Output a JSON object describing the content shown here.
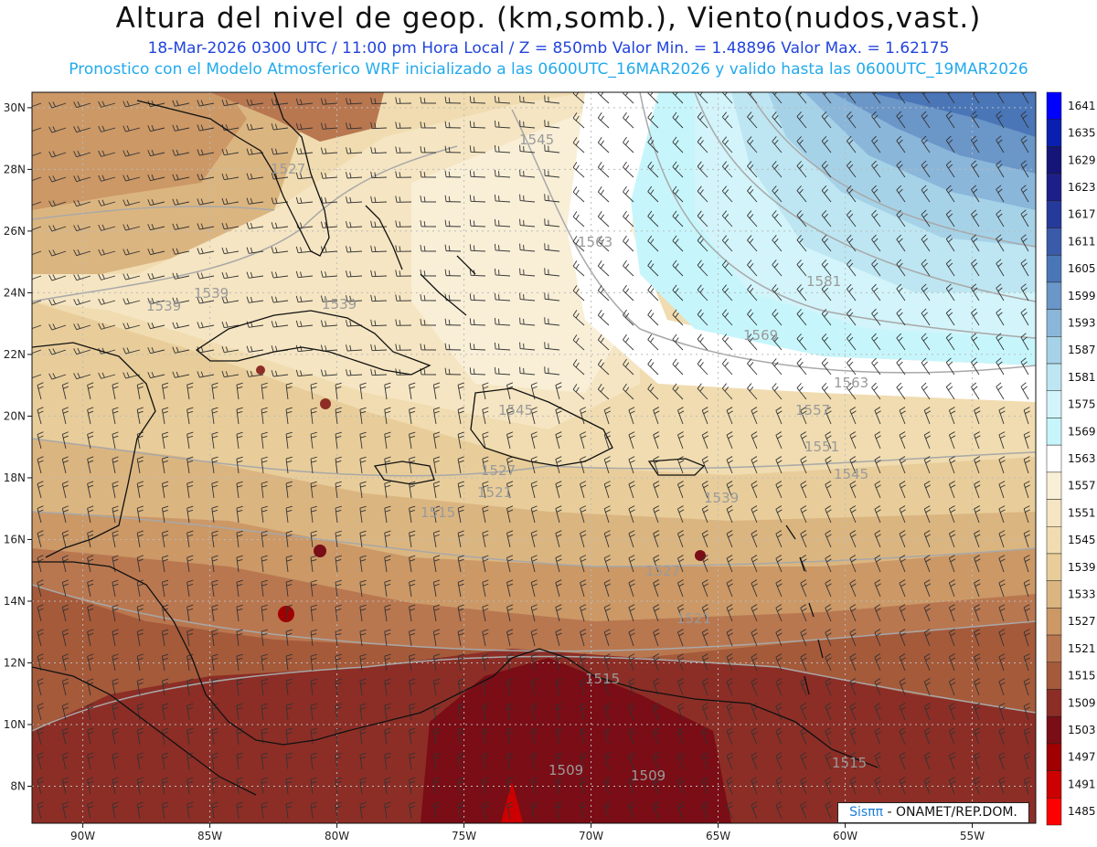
{
  "header": {
    "title": "Altura del nivel de geop. (km,somb.), Viento(nudos,vast.)",
    "subtitle_1": "18-Mar-2026  0300 UTC / 11:00 pm Hora Local / Z = 850mb    Valor Min. = 1.48896   Valor Max. = 1.62175",
    "subtitle_2": "Pronostico con el Modelo Atmosferico WRF inicializado a las 0600UTC_16MAR2026 y valido hasta las  0600UTC_19MAR2026"
  },
  "map": {
    "lon_ticks": [
      "90W",
      "85W",
      "80W",
      "75W",
      "70W",
      "65W",
      "60W",
      "55W"
    ],
    "lat_ticks": [
      "30N",
      "28N",
      "26N",
      "24N",
      "22N",
      "20N",
      "18N",
      "16N",
      "14N",
      "12N",
      "10N",
      "8N"
    ],
    "contour_labels": [
      "1545",
      "1527",
      "1563",
      "1539",
      "1539",
      "1539",
      "1581",
      "1569",
      "1563",
      "1545",
      "1557",
      "1551",
      "1545",
      "1527",
      "1521",
      "1515",
      "1539",
      "1527",
      "1521",
      "1515",
      "1509",
      "1509",
      "1515"
    ],
    "extent": {
      "lon": [
        -92,
        -52.5
      ],
      "lat": [
        6.8,
        30.5
      ]
    }
  },
  "colorbar": {
    "levels": [
      "1641",
      "1635",
      "1629",
      "1623",
      "1617",
      "1611",
      "1605",
      "1599",
      "1593",
      "1587",
      "1581",
      "1575",
      "1569",
      "1563",
      "1557",
      "1551",
      "1545",
      "1539",
      "1533",
      "1527",
      "1521",
      "1515",
      "1509",
      "1503",
      "1497",
      "1491",
      "1485"
    ],
    "colors": [
      "#0000ff",
      "#0a1fb0",
      "#151478",
      "#1e1e8a",
      "#263a9c",
      "#3a5aaa",
      "#4a76b8",
      "#6a96c8",
      "#8ab6da",
      "#a6d2e8",
      "#bde6f2",
      "#d2f4fa",
      "#c6f6fc",
      "#ffffff",
      "#f9efd7",
      "#f5e5c2",
      "#f0dcb0",
      "#e8cd9a",
      "#dbb580",
      "#cb9866",
      "#b97750",
      "#a55a3a",
      "#8c2e26",
      "#7a0d15",
      "#a00000",
      "#cc0000",
      "#ff0000"
    ]
  },
  "credit": {
    "brand": "Sisππ",
    "text": " - ONAMET/REP.DOM."
  }
}
